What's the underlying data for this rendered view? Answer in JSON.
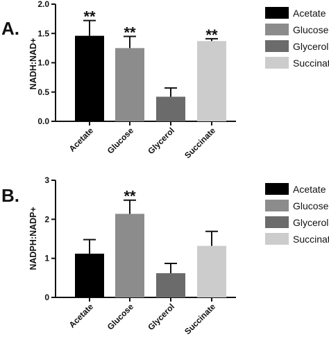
{
  "chart_data": [
    {
      "panel": "A.",
      "type": "bar",
      "ylabel": "NADH:NAD+",
      "ylim": [
        0,
        2.0
      ],
      "yticks": [
        0.0,
        0.5,
        1.0,
        1.5,
        2.0
      ],
      "ytick_labels": [
        "0.0",
        "0.5",
        "1.0",
        "1.5",
        "2.0"
      ],
      "categories": [
        "Acetate",
        "Glucose",
        "Glycerol",
        "Succinate"
      ],
      "values": [
        1.46,
        1.25,
        0.42,
        1.37
      ],
      "errors": [
        0.26,
        0.2,
        0.15,
        0.04
      ],
      "significance": [
        "**",
        "**",
        "",
        "**"
      ],
      "colors": [
        "#000000",
        "#8c8c8c",
        "#6b6b6b",
        "#cccccc"
      ],
      "legend": [
        "Acetate",
        "Glucose",
        "Glycerol",
        "Succinate"
      ],
      "legend_position": "right",
      "grid": false
    },
    {
      "panel": "B.",
      "type": "bar",
      "ylabel": "NADPH:NADP+",
      "ylim": [
        0,
        3
      ],
      "yticks": [
        0,
        1,
        2,
        3
      ],
      "ytick_labels": [
        "0",
        "1",
        "2",
        "3"
      ],
      "categories": [
        "Acetate",
        "Glucose",
        "Glycerol",
        "Succinate"
      ],
      "values": [
        1.12,
        2.14,
        0.62,
        1.32
      ],
      "errors": [
        0.36,
        0.35,
        0.25,
        0.37
      ],
      "significance": [
        "",
        "**",
        "",
        ""
      ],
      "colors": [
        "#000000",
        "#8c8c8c",
        "#6b6b6b",
        "#cccccc"
      ],
      "legend": [
        "Acetate",
        "Glucose",
        "Glycerol",
        "Succinate"
      ],
      "legend_position": "right",
      "grid": false
    }
  ]
}
